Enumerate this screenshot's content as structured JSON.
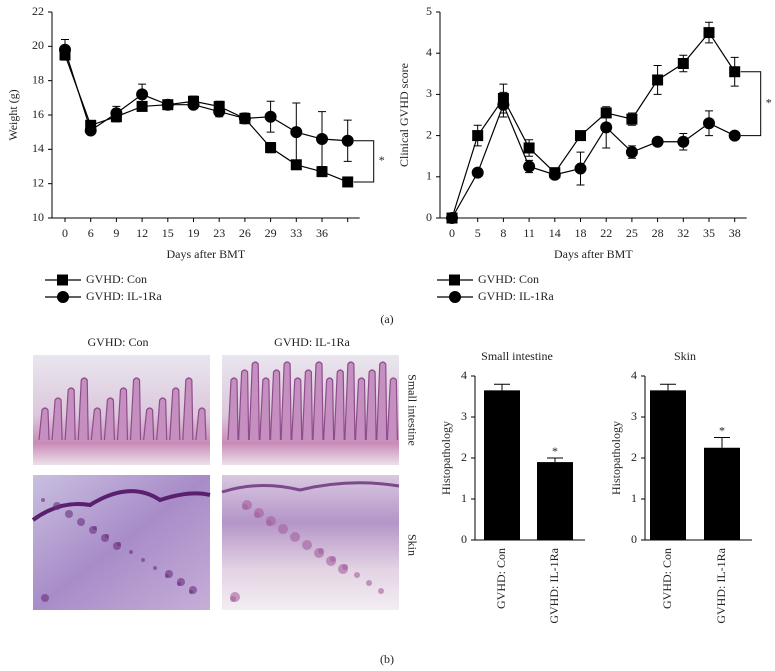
{
  "figure": {
    "panel_a_label": "(a)",
    "panel_b_label": "(b)",
    "histology": {
      "column_headers": [
        "GVHD: Con",
        "GVHD: IL-1Ra"
      ],
      "row_labels": [
        "Small intestine",
        "Skin"
      ]
    }
  },
  "chart_data": [
    {
      "type": "line",
      "x_label": "Days after BMT",
      "y_label": "Weight (g)",
      "categories": [
        "0",
        "6",
        "9",
        "12",
        "15",
        "19",
        "23",
        "26",
        "29",
        "33",
        "36",
        null
      ],
      "ylim": [
        10,
        22
      ],
      "yticks": [
        10,
        12,
        14,
        16,
        18,
        20,
        22
      ],
      "significance": "*",
      "series": [
        {
          "name": "GVHD: Con",
          "color": "#000000",
          "marker": "square",
          "values": [
            19.5,
            15.4,
            15.9,
            16.5,
            16.6,
            16.8,
            16.5,
            15.8,
            14.1,
            13.1,
            12.7,
            12.1
          ],
          "errors": [
            0.2,
            0.2,
            0.3,
            0.1,
            0.1,
            0.3,
            0.3,
            0.3,
            0.3,
            0.2,
            0.2,
            0.2
          ]
        },
        {
          "name": "GVHD: IL-1Ra",
          "color": "#000000",
          "marker": "circle",
          "values": [
            19.8,
            15.1,
            16.1,
            17.2,
            16.6,
            16.6,
            16.2,
            15.8,
            15.9,
            15.0,
            14.6,
            14.5
          ],
          "errors": [
            0.6,
            0.2,
            0.4,
            0.6,
            0.2,
            0.2,
            0.3,
            0.3,
            0.9,
            1.7,
            1.6,
            1.2
          ]
        }
      ]
    },
    {
      "type": "line",
      "x_label": "Days after BMT",
      "y_label": "Clinical GVHD score",
      "categories": [
        "0",
        "5",
        "8",
        "11",
        "14",
        "18",
        "22",
        "25",
        "28",
        "32",
        "35",
        "38"
      ],
      "ylim": [
        0,
        5
      ],
      "yticks": [
        0,
        1,
        2,
        3,
        4,
        5
      ],
      "significance": "*",
      "series": [
        {
          "name": "GVHD: Con",
          "color": "#000000",
          "marker": "square",
          "values": [
            0,
            2.0,
            2.9,
            1.7,
            1.1,
            2.0,
            2.55,
            2.4,
            3.35,
            3.75,
            4.5,
            3.55
          ],
          "errors": [
            0,
            0.25,
            0.35,
            0.2,
            0.1,
            0.1,
            0.1,
            0.15,
            0.35,
            0.2,
            0.25,
            0.35
          ]
        },
        {
          "name": "GVHD: IL-1Ra",
          "color": "#000000",
          "marker": "circle",
          "values": [
            0,
            1.1,
            2.75,
            1.25,
            1.05,
            1.2,
            2.2,
            1.6,
            1.85,
            1.85,
            2.3,
            2.0
          ],
          "errors": [
            0,
            0.05,
            0.3,
            0.15,
            0.1,
            0.4,
            0.5,
            0.15,
            0.1,
            0.2,
            0.3,
            0.05
          ]
        }
      ]
    },
    {
      "type": "bar",
      "title": "Small intestine",
      "y_label": "Histopathology",
      "categories": [
        "GVHD: Con",
        "GVHD: IL-1Ra"
      ],
      "values": [
        3.65,
        1.9
      ],
      "errors": [
        0.15,
        0.1
      ],
      "color": "#000000",
      "ylim": [
        0,
        4
      ],
      "yticks": [
        0,
        1,
        2,
        3,
        4
      ],
      "significance": "*"
    },
    {
      "type": "bar",
      "title": "Skin",
      "y_label": "Histopathology",
      "categories": [
        "GVHD: Con",
        "GVHD: IL-1Ra"
      ],
      "values": [
        3.65,
        2.25
      ],
      "errors": [
        0.15,
        0.25
      ],
      "color": "#000000",
      "ylim": [
        0,
        4
      ],
      "yticks": [
        0,
        1,
        2,
        3,
        4
      ],
      "significance": "*"
    }
  ]
}
